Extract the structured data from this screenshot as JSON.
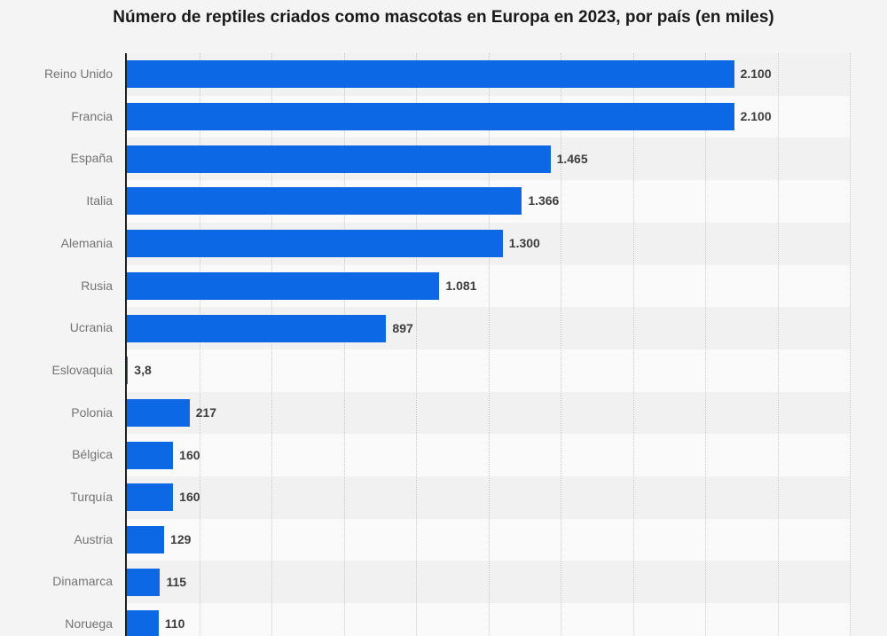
{
  "title": "Número de reptiles criados como mascotas en Europa en 2023, por país (en miles)",
  "chart_data": {
    "type": "bar",
    "orientation": "horizontal",
    "title": "Número de reptiles criados como mascotas en Europa en 2023, por país (en miles)",
    "xlabel": "",
    "ylabel": "",
    "unit": "miles",
    "xlim": [
      0,
      2500
    ],
    "grid": true,
    "gridline_interval": 250,
    "legend": false,
    "categories": [
      "Reino Unido",
      "Francia",
      "España",
      "Italia",
      "Alemania",
      "Rusia",
      "Ucrania",
      "Eslovaquia",
      "Polonia",
      "Bélgica",
      "Turquía",
      "Austria",
      "Dinamarca",
      "Noruega"
    ],
    "values": [
      2100,
      2100,
      1465,
      1366,
      1300,
      1081,
      897,
      3.8,
      217,
      160,
      160,
      129,
      115,
      110
    ],
    "value_labels": [
      "2.100",
      "2.100",
      "1.465",
      "1.366",
      "1.300",
      "1.081",
      "897",
      "3,8",
      "217",
      "160",
      "160",
      "129",
      "115",
      "110"
    ],
    "colors": {
      "bar": "#0c68e4",
      "band_even": "#f1f1f1",
      "band_odd": "#fafafa",
      "page_background": "#f4f4f4",
      "axis": "#1f1f1f",
      "gridline": "#c9c9c9",
      "title_text": "#1a1a1a",
      "category_text": "#737373",
      "value_text": "#3d3d3d"
    }
  }
}
